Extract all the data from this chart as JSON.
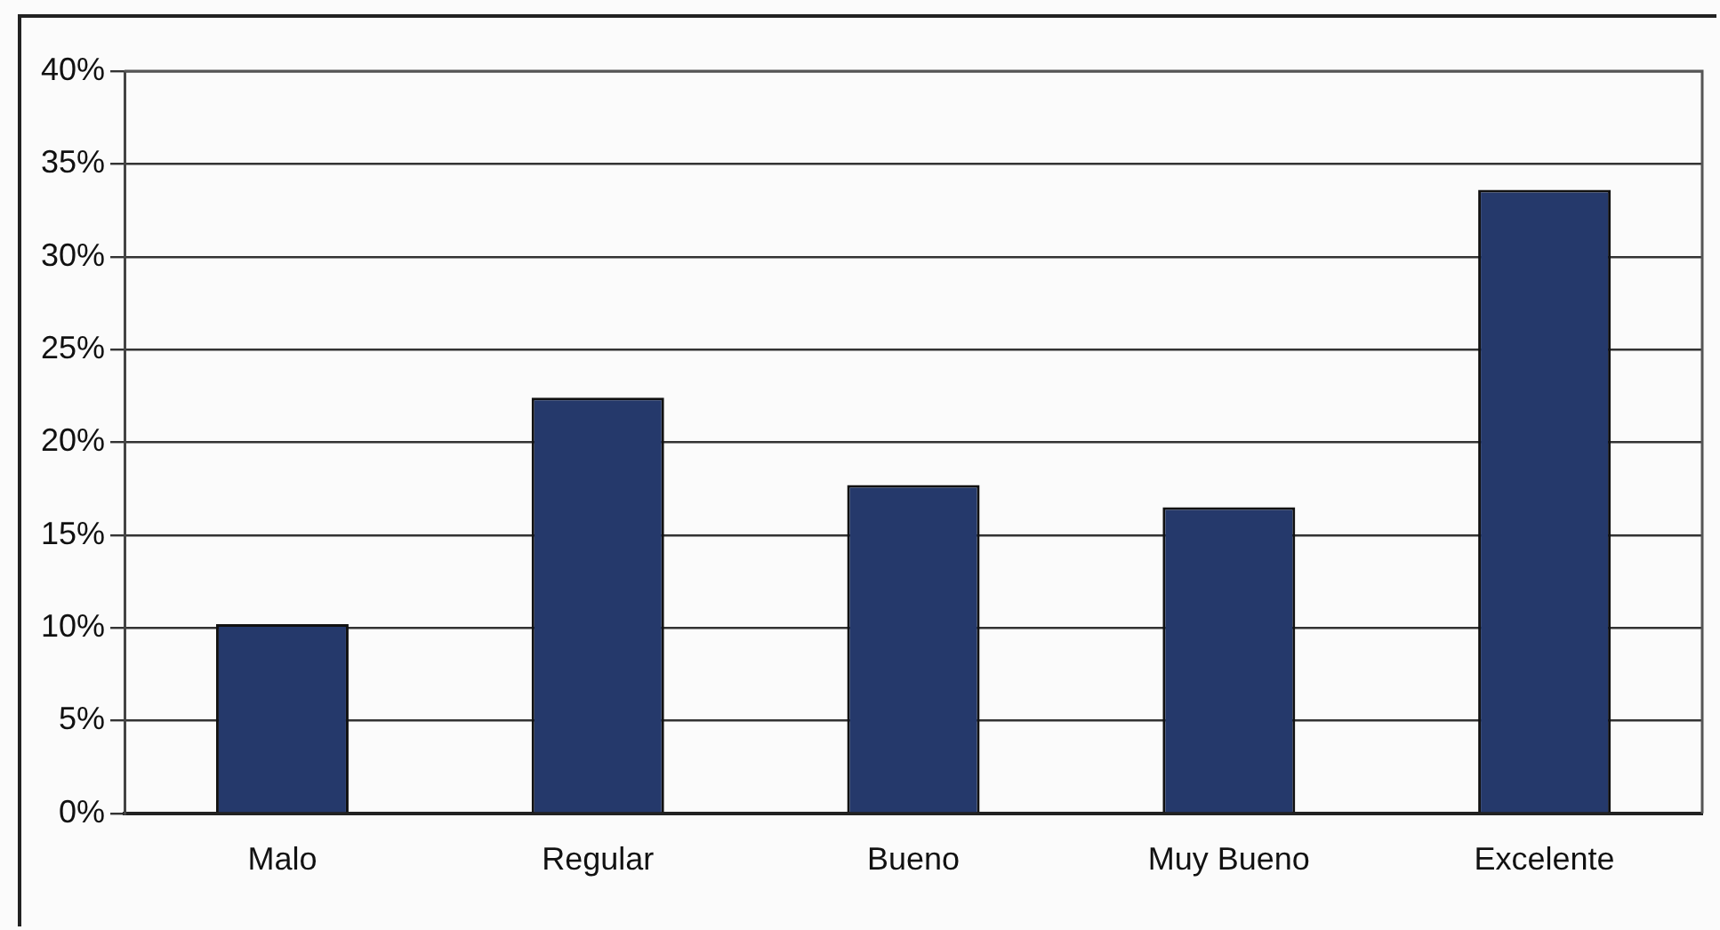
{
  "chart_data": {
    "type": "bar",
    "categories": [
      "Malo",
      "Regular",
      "Bueno",
      "Muy Bueno",
      "Excelente"
    ],
    "values": [
      10.2,
      22.4,
      17.7,
      16.5,
      33.6
    ],
    "color": "#25396b",
    "ylim": [
      0,
      40
    ],
    "yticks": [
      {
        "value": 0,
        "label": "0%"
      },
      {
        "value": 5,
        "label": "5%"
      },
      {
        "value": 10,
        "label": "10%"
      },
      {
        "value": 15,
        "label": "15%"
      },
      {
        "value": 20,
        "label": "20%"
      },
      {
        "value": 25,
        "label": "25%"
      },
      {
        "value": 30,
        "label": "30%"
      },
      {
        "value": 35,
        "label": "35%"
      },
      {
        "value": 40,
        "label": "40%"
      }
    ],
    "grid": "y"
  }
}
